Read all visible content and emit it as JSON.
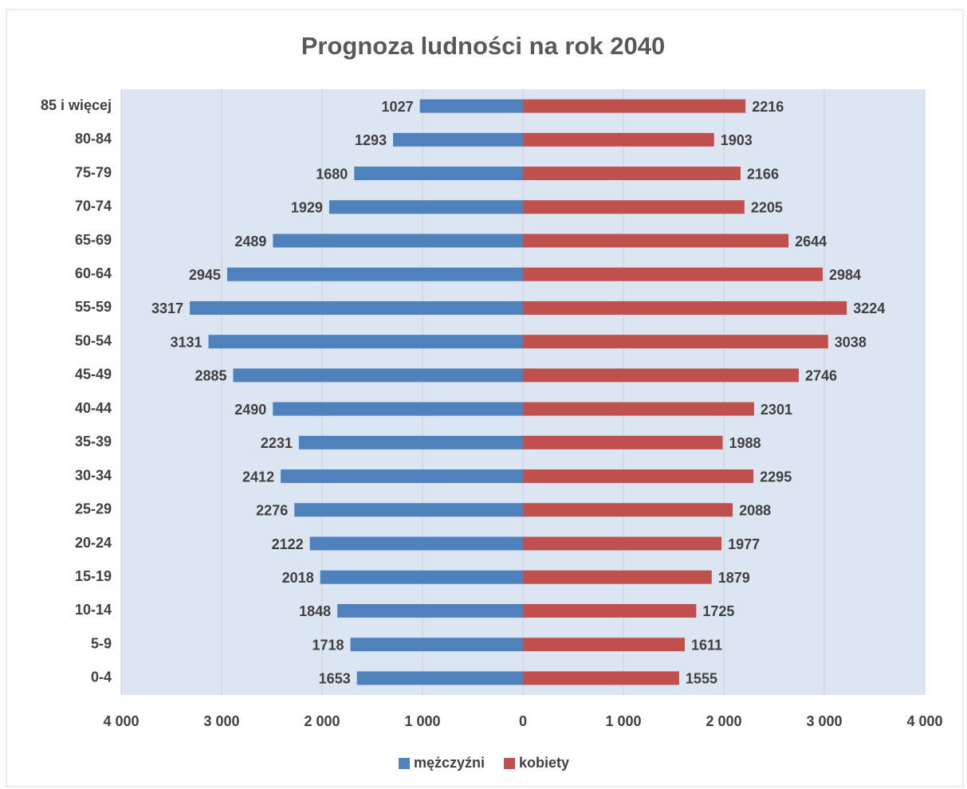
{
  "chart_data": {
    "type": "bar",
    "orientation": "horizontal",
    "title": "Prognoza ludności na rok 2040",
    "categories": [
      "0-4",
      "5-9",
      "10-14",
      "15-19",
      "20-24",
      "25-29",
      "30-34",
      "35-39",
      "40-44",
      "45-49",
      "50-54",
      "55-59",
      "60-64",
      "65-69",
      "70-74",
      "75-79",
      "80-84",
      "85 i więcej"
    ],
    "series": [
      {
        "name": "mężczyźni",
        "color": "#4f81bd",
        "values": [
          -1653,
          -1718,
          -1848,
          -2018,
          -2122,
          -2276,
          -2412,
          -2231,
          -2490,
          -2885,
          -3131,
          -3317,
          -2945,
          -2489,
          -1929,
          -1680,
          -1293,
          -1027
        ],
        "value_labels": [
          "1653",
          "1718",
          "1848",
          "2018",
          "2122",
          "2276",
          "2412",
          "2231",
          "2490",
          "2885",
          "3131",
          "3317",
          "2945",
          "2489",
          "1929",
          "1680",
          "1293",
          "1027"
        ]
      },
      {
        "name": "kobiety",
        "color": "#c0504d",
        "values": [
          1555,
          1611,
          1725,
          1879,
          1977,
          2088,
          2295,
          1988,
          2301,
          2746,
          3038,
          3224,
          2984,
          2644,
          2205,
          2166,
          1903,
          2216
        ]
      }
    ],
    "xlim": [
      -4000,
      4000
    ],
    "xticks": [
      {
        "value": -4000,
        "label": "4 000"
      },
      {
        "value": -3000,
        "label": "3 000"
      },
      {
        "value": -2000,
        "label": "2 000"
      },
      {
        "value": -1000,
        "label": "1 000"
      },
      0,
      {
        "value": 1000,
        "label": "1 000"
      },
      {
        "value": 2000,
        "label": "2 000"
      },
      {
        "value": 3000,
        "label": "3 000"
      },
      {
        "value": 4000,
        "label": "4 000"
      }
    ],
    "grid": true,
    "legend": "bottom"
  }
}
